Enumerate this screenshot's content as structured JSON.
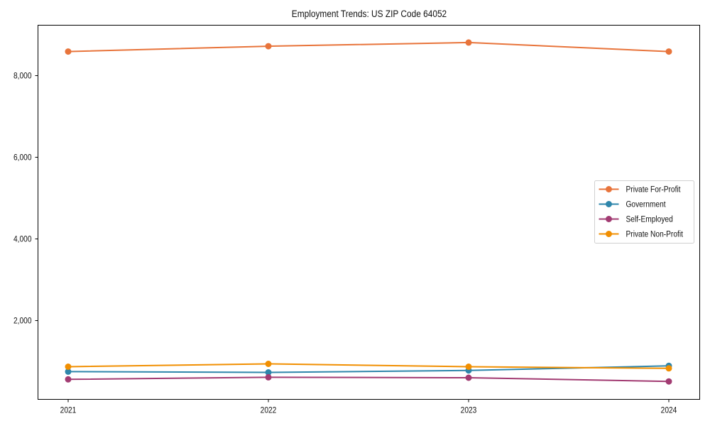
{
  "chart_data": {
    "type": "line",
    "title": "Employment Trends: US ZIP Code 64052",
    "xlabel": "",
    "ylabel": "",
    "categories": [
      "2021",
      "2022",
      "2023",
      "2024"
    ],
    "x": [
      2021,
      2022,
      2023,
      2024
    ],
    "series": [
      {
        "name": "Private For-Profit",
        "color": "#E8743B",
        "values": [
          8590,
          8720,
          8810,
          8590
        ]
      },
      {
        "name": "Government",
        "color": "#2E86AB",
        "values": [
          750,
          730,
          780,
          890
        ]
      },
      {
        "name": "Self-Employed",
        "color": "#A23B72",
        "values": [
          560,
          610,
          600,
          510
        ]
      },
      {
        "name": "Private Non-Profit",
        "color": "#F18F01",
        "values": [
          870,
          940,
          870,
          830
        ]
      }
    ],
    "yticks": [
      2000,
      4000,
      6000,
      8000
    ],
    "ytick_labels": [
      "2,000",
      "4,000",
      "6,000",
      "8,000"
    ],
    "ylim": [
      70,
      9235
    ],
    "grid": false,
    "legend_position": "center right"
  }
}
